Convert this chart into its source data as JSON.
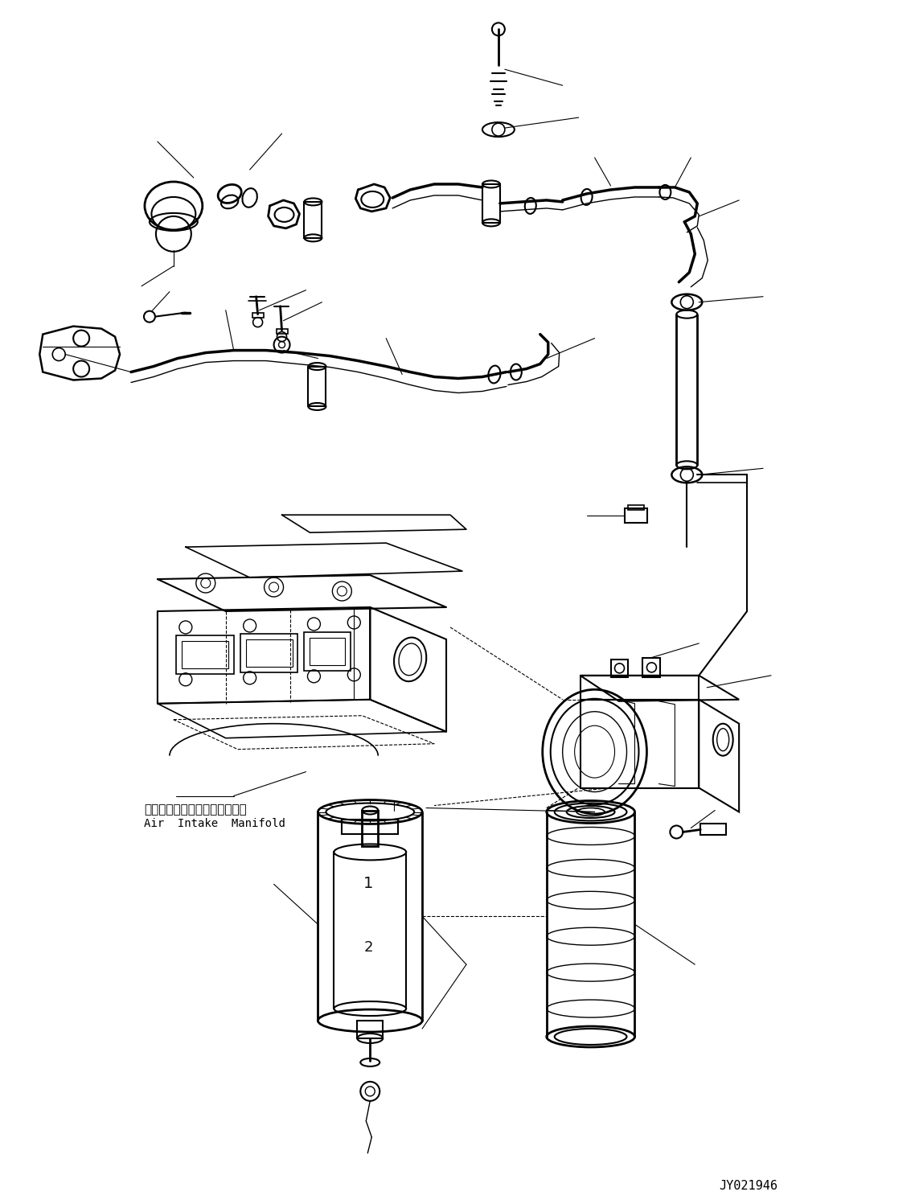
{
  "background_color": "#ffffff",
  "figure_width": 11.43,
  "figure_height": 14.92,
  "dpi": 100,
  "line_color": "#000000",
  "watermark_text": "JY021946",
  "label_japanese": "エアーインテークマニホールド",
  "label_english": "Air  Intake  Manifold"
}
